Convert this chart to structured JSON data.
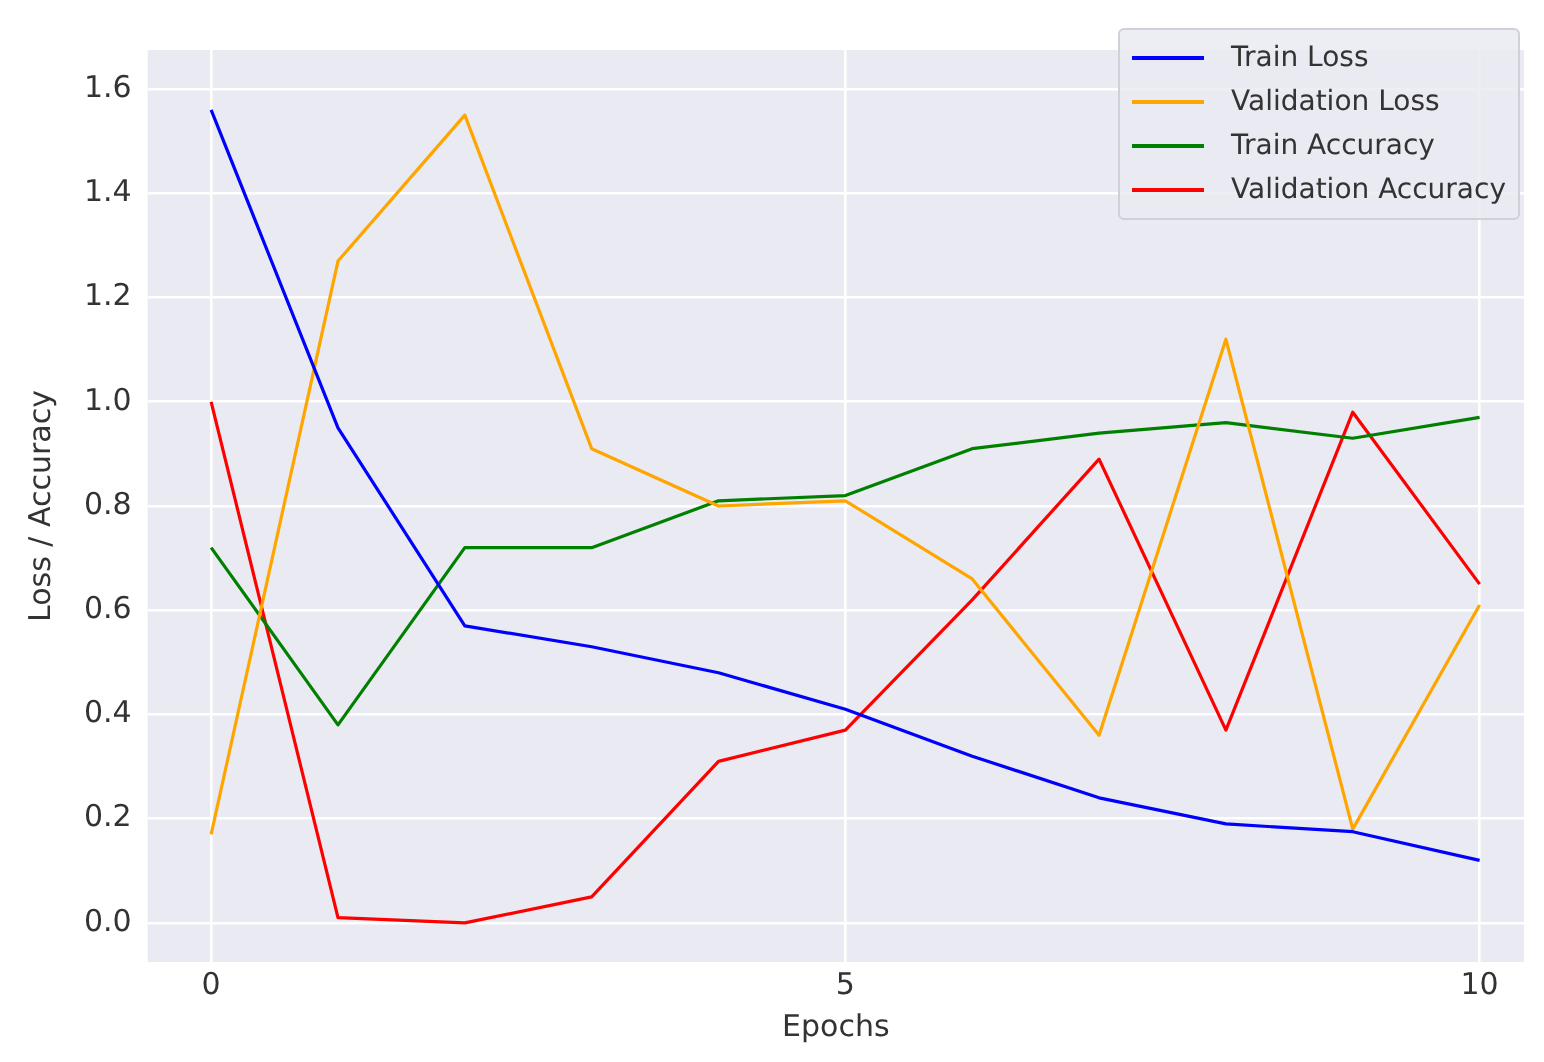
{
  "chart_data": {
    "type": "line",
    "xlabel": "Epochs",
    "ylabel": "Loss / Accuracy",
    "x": [
      0,
      1,
      2,
      3,
      4,
      5,
      6,
      7,
      8,
      9,
      10
    ],
    "xlim": [
      -0.5,
      10.35
    ],
    "xticks": [
      0,
      5,
      10
    ],
    "ylim": [
      -0.075,
      1.675
    ],
    "yticks": [
      {
        "value": 0,
        "label": "0.0"
      },
      0.2,
      0.4,
      0.6,
      0.8,
      {
        "value": 1,
        "label": "1.0"
      },
      1.2,
      1.4,
      1.6
    ],
    "grid": true,
    "legend": "top right",
    "marker": "none",
    "line_style": "solid",
    "series": [
      {
        "name": "Train Loss",
        "color": "#0000ff",
        "values": [
          1.56,
          0.95,
          0.57,
          0.53,
          0.48,
          0.41,
          0.32,
          0.24,
          0.19,
          0.175,
          0.12
        ]
      },
      {
        "name": "Validation Loss",
        "color": "#ffa500",
        "values": [
          0.17,
          1.27,
          1.55,
          0.91,
          0.8,
          0.81,
          0.66,
          0.36,
          1.12,
          0.18,
          0.61
        ]
      },
      {
        "name": "Train Accuracy",
        "color": "#008000",
        "values": [
          0.72,
          0.38,
          0.72,
          0.72,
          0.81,
          0.82,
          0.91,
          0.94,
          0.96,
          0.93,
          0.97
        ]
      },
      {
        "name": "Validation Accuracy",
        "color": "#ff0000",
        "values": [
          1.0,
          0.01,
          0.0,
          0.05,
          0.31,
          0.37,
          0.62,
          0.89,
          0.37,
          0.98,
          0.65
        ]
      }
    ]
  }
}
